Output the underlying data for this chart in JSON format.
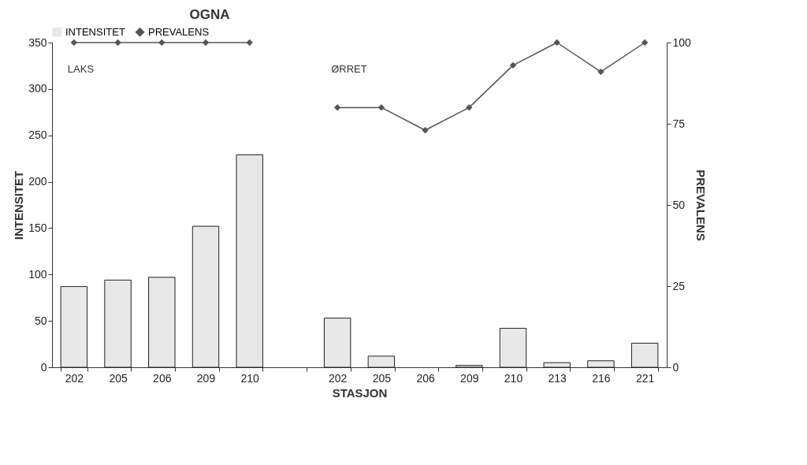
{
  "chart_data": {
    "type": "bar",
    "title": "OGNA",
    "xlabel": "STASJON",
    "ylabel": "INTENSITET",
    "y2label": "PREVALENS",
    "categories": [
      "202",
      "205",
      "206",
      "209",
      "210",
      null,
      "202",
      "205",
      "206",
      "209",
      "210",
      "213",
      "216",
      "221"
    ],
    "series": [
      {
        "name": "INTENSITET",
        "color": "#e8e8e8",
        "values": [
          87,
          94,
          97,
          152,
          229,
          null,
          53,
          12,
          null,
          2,
          42,
          5,
          7,
          26
        ]
      },
      {
        "name": "PREVALENS",
        "type": "line",
        "axis": "y2",
        "color": "#555555",
        "values": [
          100,
          100,
          100,
          100,
          100,
          null,
          80,
          80,
          73,
          80,
          93,
          100,
          91,
          100
        ]
      }
    ],
    "ylim": [
      0,
      350
    ],
    "yticks": [
      0,
      50,
      100,
      150,
      200,
      250,
      300,
      350
    ],
    "y2lim": [
      0,
      100
    ],
    "y2ticks": [
      0,
      25,
      50,
      75,
      100
    ],
    "annotations": [
      "LAKS",
      "ØRRET"
    ],
    "marker": "diamond",
    "line_style": "solid",
    "legend": "top",
    "grid": false
  }
}
